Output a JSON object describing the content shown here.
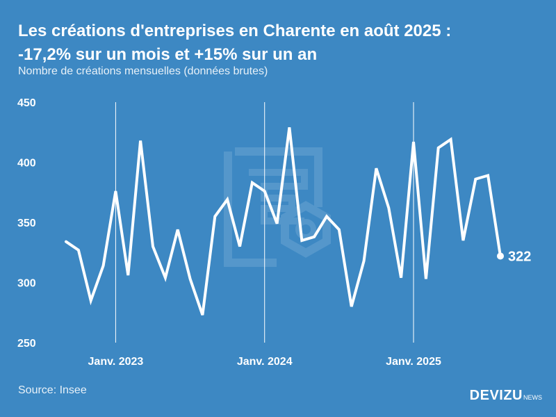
{
  "header": {
    "title_line1": "Les créations d'entreprises en Charente en août 2025 :",
    "title_line2": "-17,2% sur un mois et +15% sur un an",
    "subtitle": "Nombre de créations mensuelles (données brutes)"
  },
  "footer": {
    "source": "Source: Insee",
    "brand": "DEVIZU",
    "brand_sub": "NEWS"
  },
  "colors": {
    "background": "#3d88c3",
    "line": "#ffffff",
    "watermark": "#6aa4d2"
  },
  "chart_data": {
    "type": "line",
    "title": "Les créations d'entreprises en Charente en août 2025 : -17,2% sur un mois et +15% sur un an",
    "subtitle": "Nombre de créations mensuelles (données brutes)",
    "ylim": [
      250,
      450
    ],
    "yticks": [
      "250",
      "300",
      "350",
      "400",
      "450"
    ],
    "xticks": [
      {
        "label": "Janv. 2023",
        "index": 4
      },
      {
        "label": "Janv. 2024",
        "index": 16
      },
      {
        "label": "Janv. 2025",
        "index": 28
      }
    ],
    "series": [
      {
        "name": "Créations mensuelles",
        "start": "2022-09",
        "values": [
          334,
          327,
          285,
          314,
          376,
          306,
          418,
          330,
          304,
          344,
          303,
          273,
          355,
          369,
          330,
          383,
          376,
          349,
          429,
          335,
          338,
          355,
          344,
          280,
          318,
          395,
          362,
          304,
          417,
          303,
          412,
          419,
          335,
          386,
          389,
          322
        ]
      }
    ],
    "end_label": "322"
  }
}
